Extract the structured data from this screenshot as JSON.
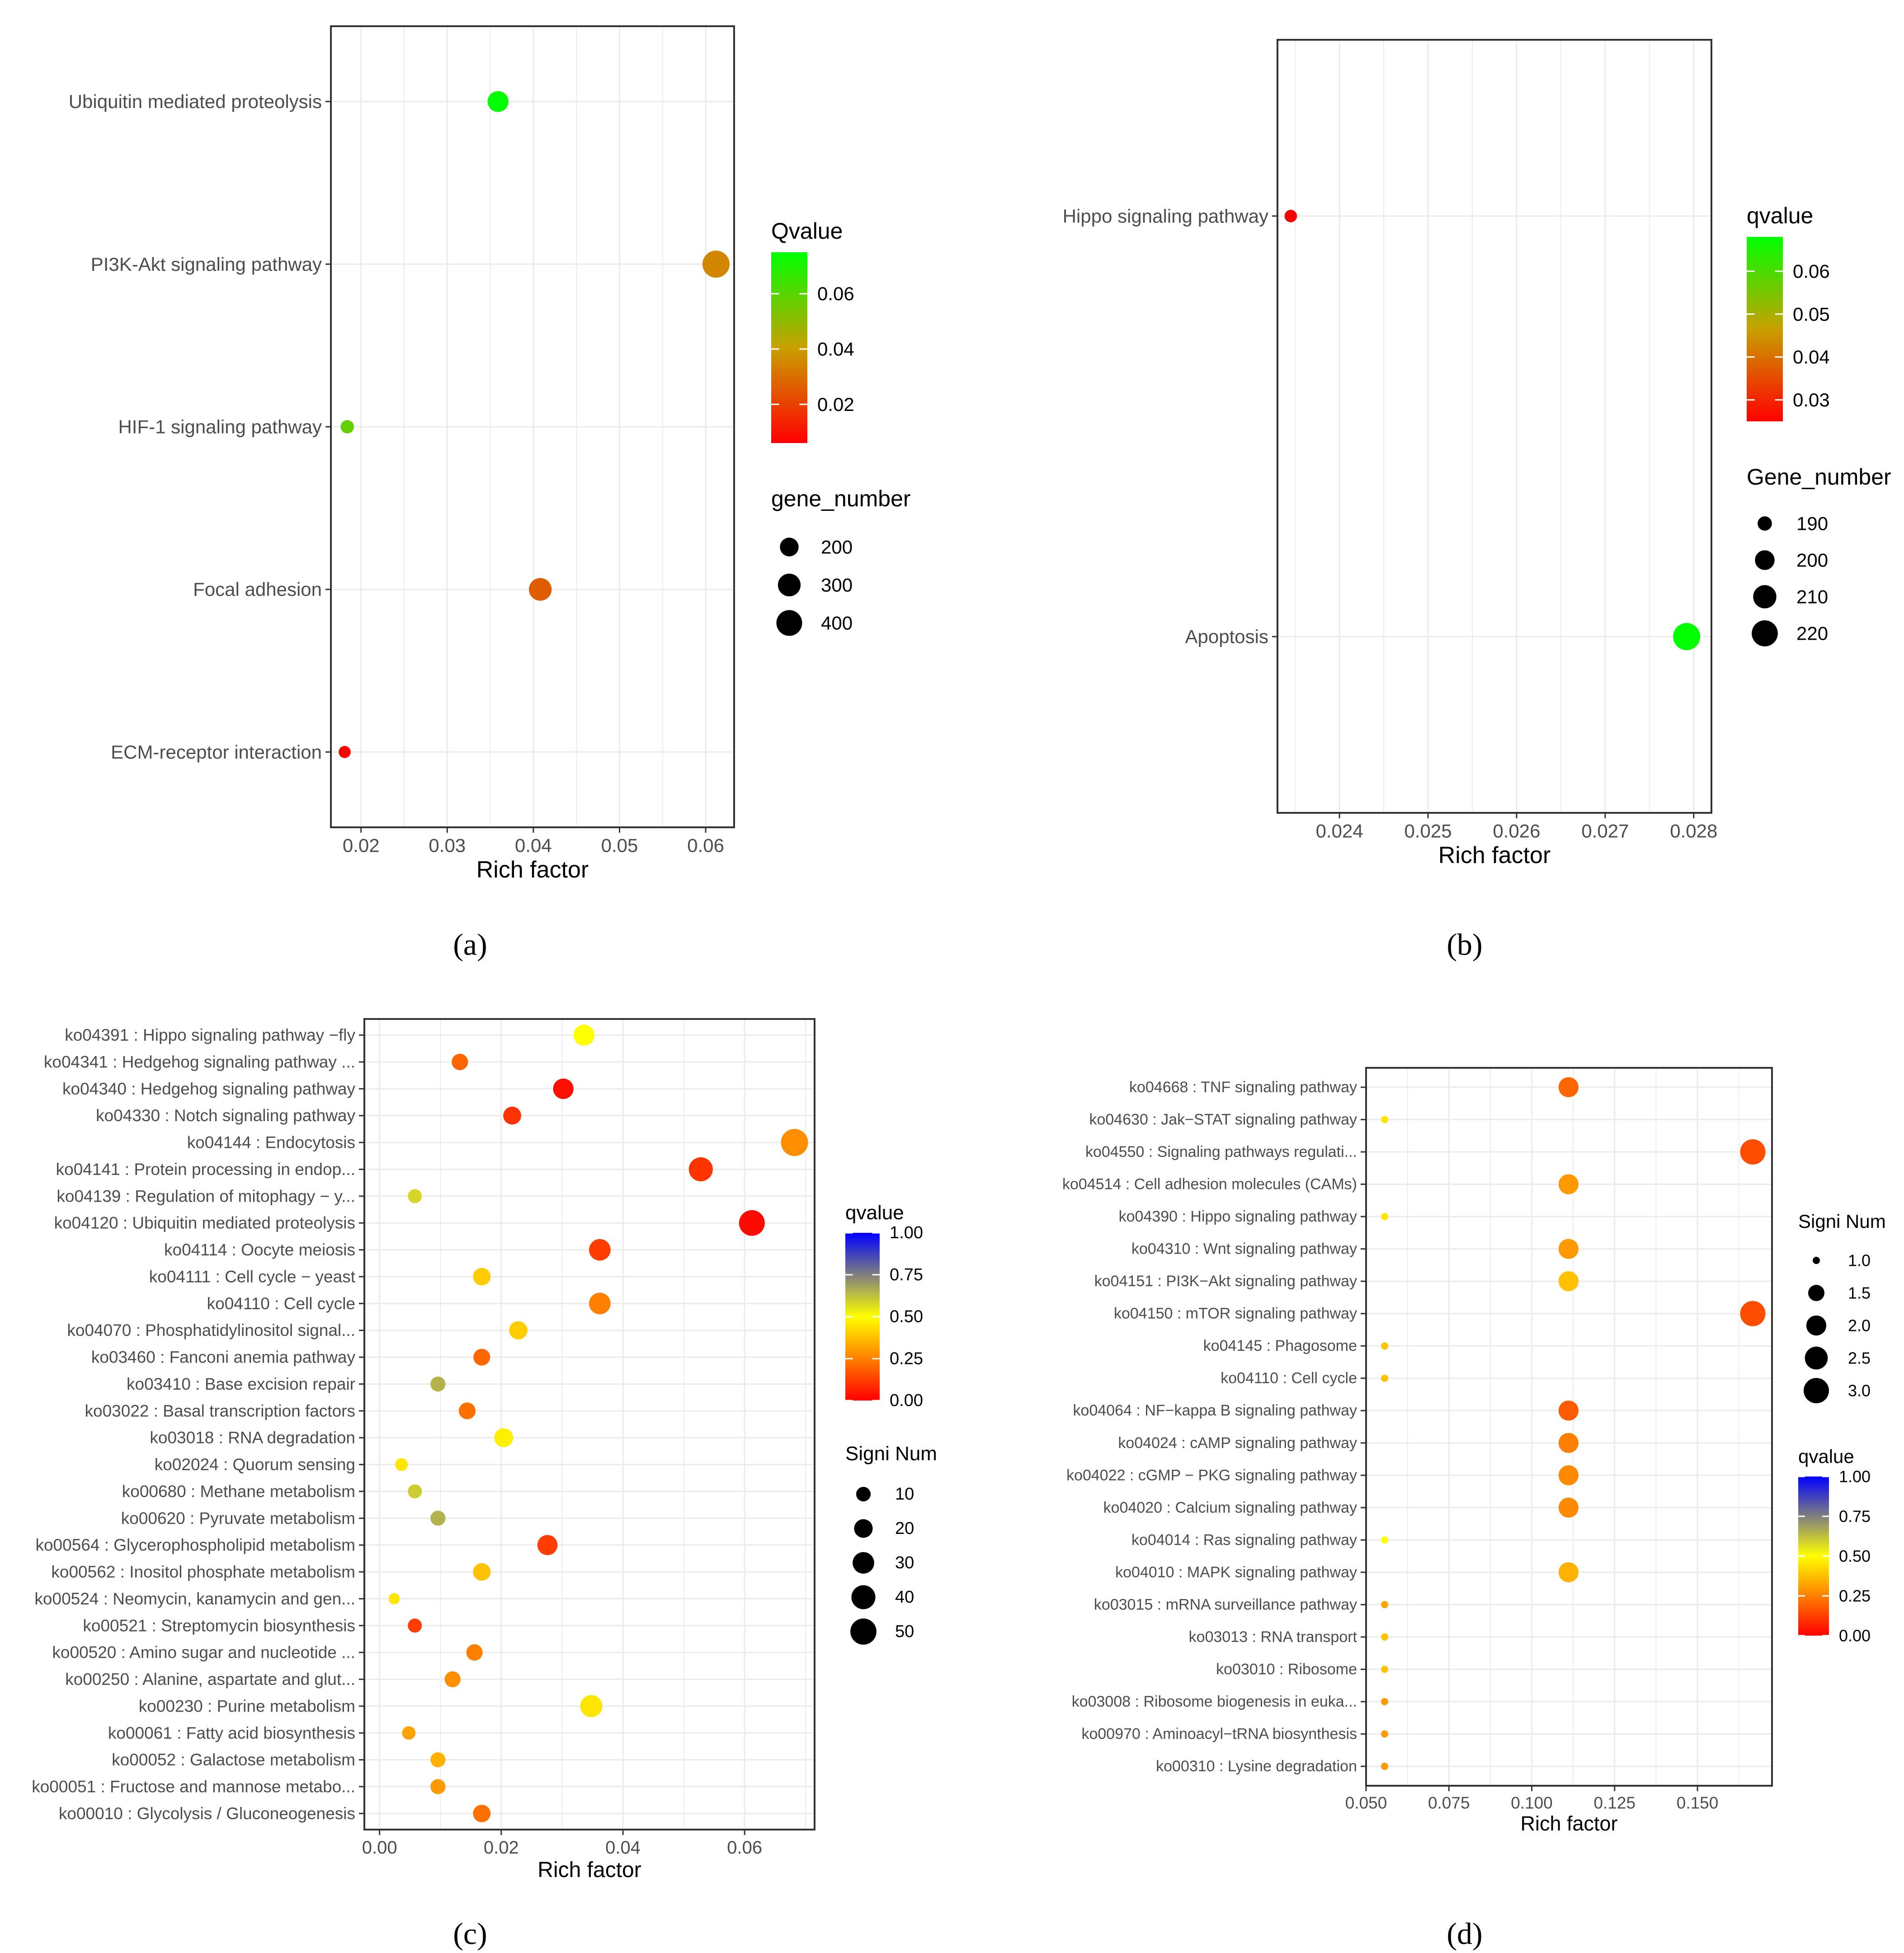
{
  "chart_data": [
    {
      "id": "a",
      "type": "scatter",
      "caption": "(a)",
      "xlabel": "Rich factor",
      "xlim": [
        0.0165,
        0.0633
      ],
      "xticks": [
        0.02,
        0.03,
        0.04,
        0.05,
        0.06
      ],
      "grid": true,
      "categories": [
        "Ubiquitin mediated proteolysis",
        "PI3K-Akt signaling pathway",
        "HIF-1 signaling pathway",
        "Focal adhesion",
        "ECM-receptor interaction"
      ],
      "points": [
        {
          "label": "Ubiquitin mediated proteolysis",
          "x": 0.0359,
          "size": 250,
          "q": 0.075
        },
        {
          "label": "PI3K-Akt signaling pathway",
          "x": 0.0612,
          "size": 450,
          "q": 0.035
        },
        {
          "label": "HIF-1 signaling pathway",
          "x": 0.0184,
          "size": 120,
          "q": 0.058
        },
        {
          "label": "Focal adhesion",
          "x": 0.0408,
          "size": 300,
          "q": 0.026
        },
        {
          "label": "ECM-receptor interaction",
          "x": 0.0181,
          "size": 110,
          "q": 0.006
        }
      ],
      "size_legend": {
        "title": "gene_number",
        "values": [
          200,
          300,
          400
        ],
        "min": 100,
        "max": 450
      },
      "color_legend": {
        "title": "Qvalue",
        "ticks": [
          0.02,
          0.04,
          0.06
        ],
        "min": 0.006,
        "max": 0.075,
        "low_color": "#ff0000",
        "mid_color": "#c8a000",
        "high_color": "#00ff00"
      }
    },
    {
      "id": "b",
      "type": "scatter",
      "caption": "(b)",
      "xlabel": "Rich factor",
      "xlim": [
        0.0233,
        0.0282
      ],
      "xticks": [
        0.024,
        0.025,
        0.026,
        0.027,
        0.028
      ],
      "grid": true,
      "categories": [
        "Hippo signaling pathway",
        "Apoptosis"
      ],
      "points": [
        {
          "label": "Hippo signaling pathway",
          "x": 0.02345,
          "size": 188,
          "q": 0.025
        },
        {
          "label": "Apoptosis",
          "x": 0.02792,
          "size": 224,
          "q": 0.068
        }
      ],
      "size_legend": {
        "title": "Gene_number",
        "values": [
          190,
          200,
          210,
          220
        ],
        "min": 186,
        "max": 224
      },
      "color_legend": {
        "title": "qvalue",
        "ticks": [
          0.03,
          0.04,
          0.05,
          0.06
        ],
        "min": 0.025,
        "max": 0.068,
        "low_color": "#ff0000",
        "mid_color": "#c8a000",
        "high_color": "#00ff00"
      }
    },
    {
      "id": "c",
      "type": "scatter",
      "caption": "(c)",
      "xlabel": "Rich factor",
      "xlim": [
        -0.0025,
        0.0715
      ],
      "xticks": [
        0.0,
        0.02,
        0.04,
        0.06
      ],
      "xtick_labels": [
        "0.00",
        "0.02",
        "0.04",
        "0.06"
      ],
      "grid": true,
      "categories": [
        "ko04391 : Hippo signaling pathway −fly",
        "ko04341 : Hedgehog signaling pathway ...",
        "ko04340 : Hedgehog signaling pathway",
        "ko04330 : Notch signaling pathway",
        "ko04144 : Endocytosis",
        "ko04141 : Protein processing in endop...",
        "ko04139 : Regulation of mitophagy − y...",
        "ko04120 : Ubiquitin mediated proteolysis",
        "ko04114 : Oocyte meiosis",
        "ko04111 : Cell cycle − yeast",
        "ko04110 : Cell cycle",
        "ko04070 : Phosphatidylinositol signal...",
        "ko03460 : Fanconi anemia pathway",
        "ko03410 : Base excision repair",
        "ko03022 : Basal transcription factors",
        "ko03018 : RNA degradation",
        "ko02024 : Quorum sensing",
        "ko00680 : Methane metabolism",
        "ko00620 : Pyruvate metabolism",
        "ko00564 : Glycerophospholipid metabolism",
        "ko00562 : Inositol phosphate metabolism",
        "ko00524 : Neomycin, kanamycin and gen...",
        "ko00521 : Streptomycin biosynthesis",
        "ko00520 : Amino sugar and nucleotide ...",
        "ko00250 : Alanine, aspartate and glut...",
        "ko00230 : Purine metabolism",
        "ko00061 : Fatty acid biosynthesis",
        "ko00052 : Galactose metabolism",
        "ko00051 : Fructose and mannose metabo...",
        "ko00010 : Glycolysis / Gluconeogenesis"
      ],
      "points": [
        {
          "x": 0.0336,
          "size": 28,
          "q": 0.5
        },
        {
          "x": 0.0132,
          "size": 14,
          "q": 0.2
        },
        {
          "x": 0.0302,
          "size": 26,
          "q": 0.03
        },
        {
          "x": 0.0218,
          "size": 18,
          "q": 0.1
        },
        {
          "x": 0.0682,
          "size": 55,
          "q": 0.28
        },
        {
          "x": 0.0528,
          "size": 40,
          "q": 0.1
        },
        {
          "x": 0.0058,
          "size": 9,
          "q": 0.58
        },
        {
          "x": 0.0612,
          "size": 48,
          "q": 0.02
        },
        {
          "x": 0.0362,
          "size": 30,
          "q": 0.12
        },
        {
          "x": 0.0168,
          "size": 17,
          "q": 0.4
        },
        {
          "x": 0.0362,
          "size": 30,
          "q": 0.25
        },
        {
          "x": 0.0228,
          "size": 19,
          "q": 0.4
        },
        {
          "x": 0.0168,
          "size": 15,
          "q": 0.2
        },
        {
          "x": 0.0096,
          "size": 11,
          "q": 0.65
        },
        {
          "x": 0.0144,
          "size": 15,
          "q": 0.22
        },
        {
          "x": 0.0204,
          "size": 21,
          "q": 0.47
        },
        {
          "x": 0.0036,
          "size": 7,
          "q": 0.45
        },
        {
          "x": 0.0058,
          "size": 9,
          "q": 0.6
        },
        {
          "x": 0.0096,
          "size": 11,
          "q": 0.65
        },
        {
          "x": 0.0276,
          "size": 25,
          "q": 0.12
        },
        {
          "x": 0.0168,
          "size": 17,
          "q": 0.38
        },
        {
          "x": 0.0024,
          "size": 5,
          "q": 0.45
        },
        {
          "x": 0.0058,
          "size": 9,
          "q": 0.12
        },
        {
          "x": 0.0156,
          "size": 14,
          "q": 0.25
        },
        {
          "x": 0.012,
          "size": 13,
          "q": 0.28
        },
        {
          "x": 0.0348,
          "size": 32,
          "q": 0.45
        },
        {
          "x": 0.0048,
          "size": 8,
          "q": 0.32
        },
        {
          "x": 0.0096,
          "size": 11,
          "q": 0.35
        },
        {
          "x": 0.0096,
          "size": 11,
          "q": 0.3
        },
        {
          "x": 0.0168,
          "size": 17,
          "q": 0.22
        }
      ],
      "size_legend": {
        "title": "Signi Num",
        "values": [
          10,
          20,
          30,
          40,
          50
        ],
        "min": 3,
        "max": 55
      },
      "color_legend": {
        "title": "qvalue",
        "ticks": [
          0.0,
          0.25,
          0.5,
          0.75,
          1.0
        ],
        "tick_labels": [
          "0.00",
          "0.25",
          "0.50",
          "0.75",
          "1.00"
        ],
        "min": 0.0,
        "max": 1.0,
        "low_color": "#ff0000",
        "mid_color": "#ffff00",
        "high_color": "#0000ff"
      }
    },
    {
      "id": "d",
      "type": "scatter",
      "caption": "(d)",
      "xlabel": "Rich factor",
      "xlim": [
        0.05,
        0.1725
      ],
      "xticks": [
        0.05,
        0.075,
        0.1,
        0.125,
        0.15
      ],
      "xtick_labels": [
        "0.050",
        "0.075",
        "0.100",
        "0.125",
        "0.150"
      ],
      "grid": true,
      "categories": [
        "ko04668 : TNF signaling pathway",
        "ko04630 : Jak−STAT signaling pathway",
        "ko04550 : Signaling pathways regulati...",
        "ko04514 : Cell adhesion molecules (CAMs)",
        "ko04390 : Hippo signaling pathway",
        "ko04310 : Wnt signaling pathway",
        "ko04151 : PI3K−Akt signaling pathway",
        "ko04150 : mTOR signaling pathway",
        "ko04145 : Phagosome",
        "ko04110 : Cell cycle",
        "ko04064 : NF−kappa B signaling pathway",
        "ko04024 : cAMP signaling pathway",
        "ko04022 : cGMP − PKG signaling pathway",
        "ko04020 : Calcium signaling pathway",
        "ko04014 : Ras signaling pathway",
        "ko04010 : MAPK signaling pathway",
        "ko03015 : mRNA surveillance pathway",
        "ko03013 : RNA transport",
        "ko03010 : Ribosome",
        "ko03008 : Ribosome biogenesis in euka...",
        "ko00970 : Aminoacyl−tRNA biosynthesis",
        "ko00310 : Lysine degradation"
      ],
      "points": [
        {
          "x": 0.1111,
          "size": 2,
          "q": 0.2
        },
        {
          "x": 0.0556,
          "size": 1,
          "q": 0.45
        },
        {
          "x": 0.1667,
          "size": 3,
          "q": 0.15
        },
        {
          "x": 0.1111,
          "size": 2,
          "q": 0.3
        },
        {
          "x": 0.0556,
          "size": 1,
          "q": 0.45
        },
        {
          "x": 0.1111,
          "size": 2,
          "q": 0.3
        },
        {
          "x": 0.1111,
          "size": 2,
          "q": 0.38
        },
        {
          "x": 0.1667,
          "size": 3,
          "q": 0.15
        },
        {
          "x": 0.0556,
          "size": 1,
          "q": 0.38
        },
        {
          "x": 0.0556,
          "size": 1,
          "q": 0.38
        },
        {
          "x": 0.1111,
          "size": 2,
          "q": 0.18
        },
        {
          "x": 0.1111,
          "size": 2,
          "q": 0.25
        },
        {
          "x": 0.1111,
          "size": 2,
          "q": 0.27
        },
        {
          "x": 0.1111,
          "size": 2,
          "q": 0.27
        },
        {
          "x": 0.0556,
          "size": 1,
          "q": 0.5
        },
        {
          "x": 0.1111,
          "size": 2,
          "q": 0.35
        },
        {
          "x": 0.0556,
          "size": 1,
          "q": 0.32
        },
        {
          "x": 0.0556,
          "size": 1,
          "q": 0.38
        },
        {
          "x": 0.0556,
          "size": 1,
          "q": 0.38
        },
        {
          "x": 0.0556,
          "size": 1,
          "q": 0.3
        },
        {
          "x": 0.0556,
          "size": 1,
          "q": 0.3
        },
        {
          "x": 0.0556,
          "size": 1,
          "q": 0.3
        }
      ],
      "size_legend": {
        "title": "Signi Num",
        "values": [
          1.0,
          1.5,
          2.0,
          2.5,
          3.0
        ],
        "value_labels": [
          "1.0",
          "1.5",
          "2.0",
          "2.5",
          "3.0"
        ],
        "min": 1,
        "max": 3
      },
      "color_legend": {
        "title": "qvalue",
        "ticks": [
          0.0,
          0.25,
          0.5,
          0.75,
          1.0
        ],
        "tick_labels": [
          "0.00",
          "0.25",
          "0.50",
          "0.75",
          "1.00"
        ],
        "min": 0.0,
        "max": 1.0,
        "low_color": "#ff0000",
        "mid_color": "#ffff00",
        "high_color": "#0000ff"
      }
    }
  ]
}
